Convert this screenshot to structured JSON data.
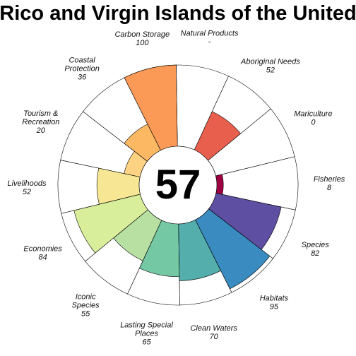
{
  "chart_data": {
    "type": "flower",
    "title": "Rico and Virgin Islands of the United",
    "overall_score": "57",
    "max": 100,
    "petals": [
      {
        "name": "Fisheries",
        "score_text": "8",
        "value": 8,
        "color": "#9e0142"
      },
      {
        "name": "Mariculture",
        "score_text": "0",
        "value": 0,
        "color": "#d53e4f"
      },
      {
        "name": "Aboriginal Needs",
        "score_text": "52",
        "value": 52,
        "color": "#e8604d"
      },
      {
        "name": "Natural Products",
        "score_text": "-",
        "value": null,
        "color": "#f46d43"
      },
      {
        "name": "Carbon Storage",
        "score_text": "100",
        "value": 100,
        "color": "#fb9a56"
      },
      {
        "name": "Coastal Protection",
        "score_text": "36",
        "value": 36,
        "color": "#fdb863"
      },
      {
        "name": "Tourism & Recreation",
        "score_text": "20",
        "value": 20,
        "color": "#fdd283"
      },
      {
        "name": "Livelihoods",
        "score_text": "52",
        "value": 52,
        "color": "#f7e794"
      },
      {
        "name": "Economies",
        "score_text": "84",
        "value": 84,
        "color": "#d9ee9b"
      },
      {
        "name": "Iconic Species",
        "score_text": "55",
        "value": 55,
        "color": "#b8e0a3"
      },
      {
        "name": "Lasting Special Places",
        "score_text": "65",
        "value": 65,
        "color": "#74c8a4"
      },
      {
        "name": "Clean Waters",
        "score_text": "70",
        "value": 70,
        "color": "#54aeac"
      },
      {
        "name": "Habitats",
        "score_text": "95",
        "value": 95,
        "color": "#3a8bc0"
      },
      {
        "name": "Species",
        "score_text": "82",
        "value": 82,
        "color": "#5e4fa2"
      }
    ]
  }
}
